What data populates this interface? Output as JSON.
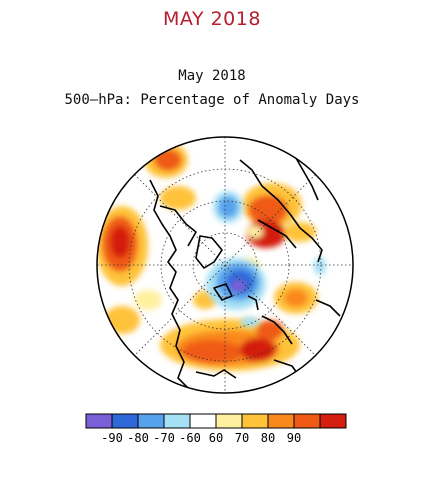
{
  "page": {
    "heading": "MAY 2018",
    "heading_color": "#b5202e"
  },
  "map": {
    "title": "May 2018",
    "subtitle": "500–hPa: Percentage of Anomaly Days",
    "projection": "polar stereographic (Northern Hemisphere)"
  },
  "colorbar": {
    "labels": [
      "-90",
      "-80",
      "-70",
      "-60",
      "60",
      "70",
      "80",
      "90"
    ],
    "colors": [
      "#7a5fd8",
      "#2f68d8",
      "#56a2ec",
      "#a6e0f4",
      "#ffffff",
      "#fff0a0",
      "#ffc33a",
      "#f9891c",
      "#ef5a15",
      "#d41e10"
    ]
  }
}
